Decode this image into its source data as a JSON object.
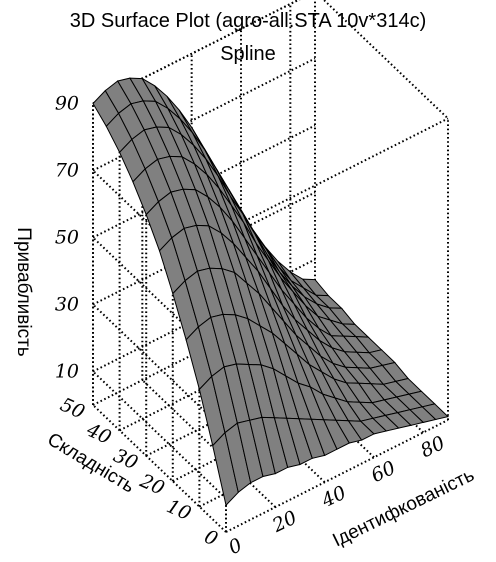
{
  "chart_data": {
    "type": "surface3d",
    "title": "3D Surface Plot (agro-all.STA 10v*314c)",
    "subtitle": "Spline",
    "xlabel": "Ідентифкованість",
    "ylabel": "Складність",
    "zlabel": "Привабливість",
    "x_ticks": [
      "0",
      "20",
      "40",
      "60",
      "80"
    ],
    "y_ticks": [
      "0",
      "10",
      "20",
      "30",
      "40",
      "50"
    ],
    "z_ticks": [
      "10",
      "30",
      "50",
      "70",
      "90"
    ],
    "xlim": [
      0,
      90
    ],
    "ylim": [
      0,
      50
    ],
    "zlim": [
      0,
      90
    ],
    "grid": true,
    "surface_color": "#808080",
    "mesh_color": "#000000",
    "x_grid": [
      0,
      5,
      10,
      15,
      20,
      25,
      30,
      35,
      40,
      45,
      50,
      55,
      60,
      65,
      70,
      75,
      80,
      85,
      90
    ],
    "y_grid": [
      50,
      45,
      40,
      35,
      30,
      25,
      20,
      15,
      10,
      5,
      0
    ],
    "z": [
      [
        90,
        92,
        93,
        92,
        90,
        86,
        81,
        75,
        68,
        60,
        52,
        44,
        36,
        28,
        21,
        15,
        10,
        6,
        4
      ],
      [
        87,
        89,
        90,
        89,
        87,
        83,
        78,
        72,
        65,
        57,
        49,
        41,
        33,
        26,
        19,
        13,
        9,
        5,
        3
      ],
      [
        83,
        85,
        86,
        85,
        83,
        79,
        74,
        68,
        61,
        53,
        46,
        38,
        30,
        23,
        17,
        12,
        8,
        5,
        3
      ],
      [
        78,
        80,
        81,
        80,
        78,
        74,
        69,
        63,
        56,
        49,
        41,
        34,
        27,
        21,
        15,
        10,
        7,
        4,
        2
      ],
      [
        72,
        74,
        75,
        74,
        72,
        68,
        63,
        57,
        50,
        43,
        36,
        29,
        23,
        17,
        12,
        8,
        6,
        4,
        2
      ],
      [
        65,
        67,
        68,
        67,
        65,
        61,
        56,
        50,
        44,
        37,
        30,
        24,
        19,
        14,
        10,
        7,
        5,
        3,
        2
      ],
      [
        56,
        58,
        59,
        58,
        56,
        53,
        48,
        43,
        37,
        31,
        25,
        20,
        15,
        11,
        8,
        6,
        4,
        3,
        2
      ],
      [
        46,
        48,
        49,
        48,
        46,
        43,
        39,
        35,
        30,
        25,
        20,
        16,
        12,
        9,
        7,
        5,
        3,
        2,
        1
      ],
      [
        35,
        37,
        38,
        37,
        35,
        33,
        30,
        26,
        22,
        19,
        15,
        12,
        9,
        7,
        5,
        4,
        3,
        2,
        1
      ],
      [
        22,
        24,
        25,
        24,
        23,
        21,
        19,
        17,
        15,
        13,
        11,
        9,
        7,
        6,
        5,
        4,
        3,
        2,
        1
      ],
      [
        8,
        10,
        11,
        11,
        10,
        10,
        9,
        9,
        8,
        8,
        8,
        7,
        7,
        6,
        5,
        4,
        3,
        2,
        1
      ]
    ]
  }
}
